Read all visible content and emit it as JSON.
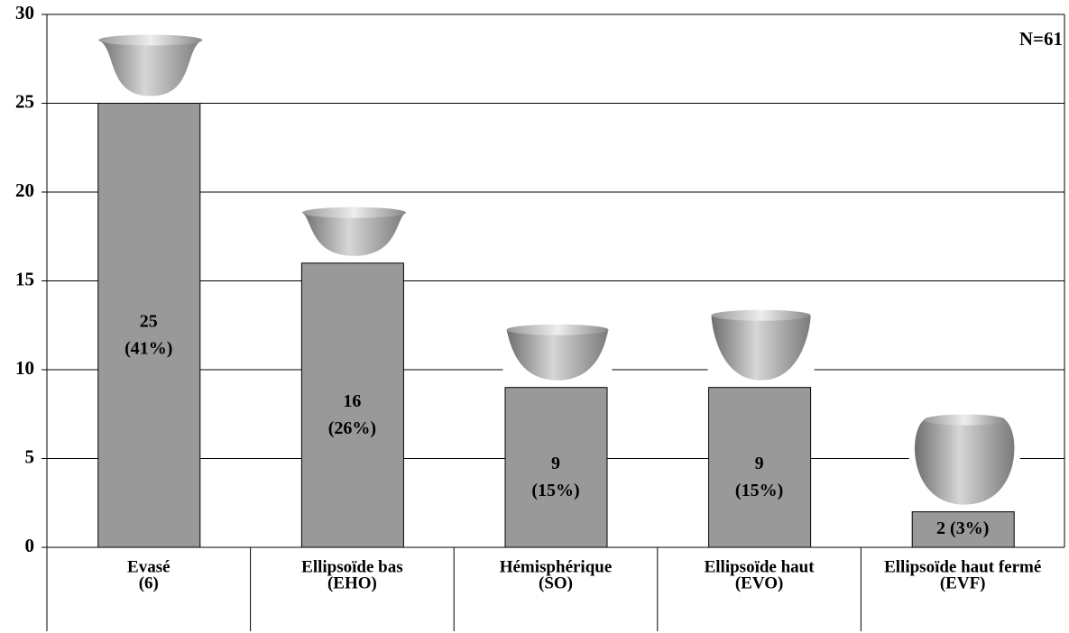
{
  "chart_data": {
    "type": "bar",
    "categories": [
      "Evasé",
      "Ellipsoïde bas",
      "Hémisphérique",
      "Ellipsoïde haut",
      "Ellipsoïde haut fermé"
    ],
    "category_notes": [
      "(6)",
      "(EHO)",
      "(SO)",
      "(EVO)",
      "(EVF)"
    ],
    "values": [
      25,
      16,
      9,
      9,
      2
    ],
    "value_labels": [
      [
        "25",
        "(41%)"
      ],
      [
        "16",
        "(26%)"
      ],
      [
        "9",
        "(15%)"
      ],
      [
        "9",
        "(15%)"
      ],
      [
        "2 (3%)"
      ]
    ],
    "color": "#999999",
    "ylim": [
      0,
      30
    ],
    "yticks": [
      0,
      5,
      10,
      15,
      20,
      25,
      30
    ],
    "grid": true,
    "annotation": "N=61"
  }
}
